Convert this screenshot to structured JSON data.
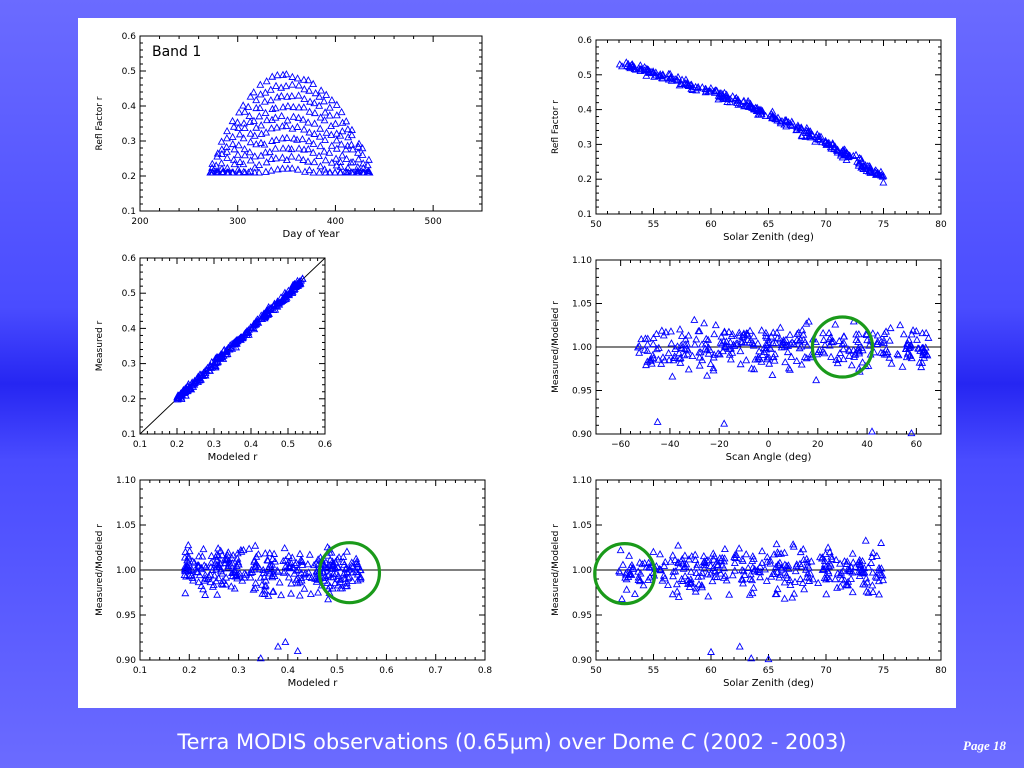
{
  "caption": {
    "pre": "Terra MODIS observations (0.65",
    "mu": "μ",
    "post": "m) over Dome ",
    "italic": "C",
    "tail": " (2002 - 2003)"
  },
  "page": "Page 18",
  "colors": {
    "marker": "#0000ff",
    "highlight": "#1a9a1a",
    "line": "#000000"
  },
  "chart_data": [
    {
      "id": "day-of-year",
      "type": "scatter",
      "title": "",
      "annotation": "Band 1",
      "xlabel": "Day of Year",
      "ylabel": "Refl Factor r",
      "xlim": [
        200,
        550
      ],
      "ylim": [
        0.1,
        0.6
      ],
      "xticks": [
        200,
        300,
        400,
        500
      ],
      "xtick_labels": [
        "200",
        "300",
        "400",
        "500"
      ],
      "yticks": [
        0.1,
        0.2,
        0.3,
        0.4,
        0.5,
        0.6
      ],
      "ytick_labels": [
        "0.1",
        "0.2",
        "0.3",
        "0.4",
        "0.5",
        "0.6"
      ],
      "series": [
        {
          "pattern": "arch",
          "x_start": 272,
          "x_end": 438,
          "peak_x": 350,
          "baselines": [
            0.22,
            0.25,
            0.28,
            0.31,
            0.34,
            0.37,
            0.4,
            0.43,
            0.46,
            0.49
          ],
          "n_per_curve": 30
        }
      ]
    },
    {
      "id": "solar-zenith-refl",
      "type": "scatter",
      "title": "",
      "xlabel": "Solar Zenith (deg)",
      "ylabel": "Refl Factor r",
      "xlim": [
        50,
        80
      ],
      "ylim": [
        0.1,
        0.6
      ],
      "xticks": [
        50,
        55,
        60,
        65,
        70,
        75,
        80
      ],
      "xtick_labels": [
        "50",
        "55",
        "60",
        "65",
        "70",
        "75",
        "80"
      ],
      "yticks": [
        0.1,
        0.2,
        0.3,
        0.4,
        0.5,
        0.6
      ],
      "ytick_labels": [
        "0.1",
        "0.2",
        "0.3",
        "0.4",
        "0.5",
        "0.6"
      ],
      "series": [
        {
          "pattern": "curve",
          "x_range": [
            52,
            75
          ],
          "points": [
            [
              52,
              0.535
            ],
            [
              55,
              0.505
            ],
            [
              60,
              0.455
            ],
            [
              65,
              0.385
            ],
            [
              70,
              0.305
            ],
            [
              75,
              0.205
            ]
          ],
          "spread": 0.015,
          "n": 300
        }
      ]
    },
    {
      "id": "measured-vs-modeled",
      "type": "scatter",
      "title": "",
      "xlabel": "Modeled r",
      "ylabel": "Measured r",
      "xlim": [
        0.1,
        0.6
      ],
      "ylim": [
        0.1,
        0.6
      ],
      "xticks": [
        0.1,
        0.2,
        0.3,
        0.4,
        0.5,
        0.6
      ],
      "xtick_labels": [
        "0.1",
        "0.2",
        "0.3",
        "0.4",
        "0.5",
        "0.6"
      ],
      "yticks": [
        0.1,
        0.2,
        0.3,
        0.4,
        0.5,
        0.6
      ],
      "ytick_labels": [
        "0.1",
        "0.2",
        "0.3",
        "0.4",
        "0.5",
        "0.6"
      ],
      "reference_line": "1:1",
      "series": [
        {
          "pattern": "diagonal",
          "x_range": [
            0.2,
            0.54
          ],
          "spread": 0.008,
          "n": 300
        }
      ]
    },
    {
      "id": "scan-angle",
      "type": "scatter",
      "title": "",
      "xlabel": "Scan Angle (deg)",
      "ylabel": "Measured/Modeled r",
      "xlim": [
        -70,
        70
      ],
      "ylim": [
        0.9,
        1.1
      ],
      "xticks": [
        -60,
        -40,
        -20,
        0,
        20,
        40,
        60
      ],
      "xtick_labels": [
        "−60",
        "−40",
        "−20",
        "0",
        "20",
        "40",
        "60"
      ],
      "yticks": [
        0.9,
        0.95,
        1.0,
        1.05,
        1.1
      ],
      "ytick_labels": [
        "0.90",
        "0.95",
        "1.00",
        "1.05",
        "1.10"
      ],
      "reference_line": 1.0,
      "highlight_circle": {
        "cx": 30,
        "cy": 1.0
      },
      "series": [
        {
          "pattern": "band",
          "x_range": [
            -53,
            65
          ],
          "center": 1.0,
          "spread": 0.022,
          "n": 340,
          "outliers": [
            [
              -45,
              0.914
            ],
            [
              -18,
              0.912
            ],
            [
              42,
              0.903
            ],
            [
              58,
              0.901
            ]
          ]
        }
      ]
    },
    {
      "id": "modeled-ratio",
      "type": "scatter",
      "title": "",
      "xlabel": "Modeled r",
      "ylabel": "Measured/Modeled r",
      "xlim": [
        0.1,
        0.8
      ],
      "ylim": [
        0.9,
        1.1
      ],
      "xticks": [
        0.1,
        0.2,
        0.3,
        0.4,
        0.5,
        0.6,
        0.7,
        0.8
      ],
      "xtick_labels": [
        "0.1",
        "0.2",
        "0.3",
        "0.4",
        "0.5",
        "0.6",
        "0.7",
        "0.8"
      ],
      "yticks": [
        0.9,
        0.95,
        1.0,
        1.05,
        1.1
      ],
      "ytick_labels": [
        "0.90",
        "0.95",
        "1.00",
        "1.05",
        "1.10"
      ],
      "reference_line": 1.0,
      "highlight_circle": {
        "cx": 0.525,
        "cy": 0.997
      },
      "series": [
        {
          "pattern": "band",
          "x_range": [
            0.19,
            0.55
          ],
          "center": 1.0,
          "spread": 0.022,
          "n": 340,
          "outliers": [
            [
              0.345,
              0.902
            ],
            [
              0.38,
              0.915
            ],
            [
              0.395,
              0.92
            ],
            [
              0.42,
              0.91
            ]
          ]
        }
      ]
    },
    {
      "id": "solar-zenith-ratio",
      "type": "scatter",
      "title": "",
      "xlabel": "Solar Zenith (deg)",
      "ylabel": "Measured/Modeled r",
      "xlim": [
        50,
        80
      ],
      "ylim": [
        0.9,
        1.1
      ],
      "xticks": [
        50,
        55,
        60,
        65,
        70,
        75,
        80
      ],
      "xtick_labels": [
        "50",
        "55",
        "60",
        "65",
        "70",
        "75",
        "80"
      ],
      "yticks": [
        0.9,
        0.95,
        1.0,
        1.05,
        1.1
      ],
      "ytick_labels": [
        "0.90",
        "0.95",
        "1.00",
        "1.05",
        "1.10"
      ],
      "reference_line": 1.0,
      "highlight_circle": {
        "cx": 52.5,
        "cy": 0.996
      },
      "series": [
        {
          "pattern": "band",
          "x_range": [
            52,
            75
          ],
          "center": 1.0,
          "spread": 0.022,
          "n": 340,
          "outliers": [
            [
              60,
              0.909
            ],
            [
              62.5,
              0.915
            ],
            [
              63.5,
              0.902
            ],
            [
              65,
              0.901
            ]
          ]
        }
      ]
    }
  ]
}
